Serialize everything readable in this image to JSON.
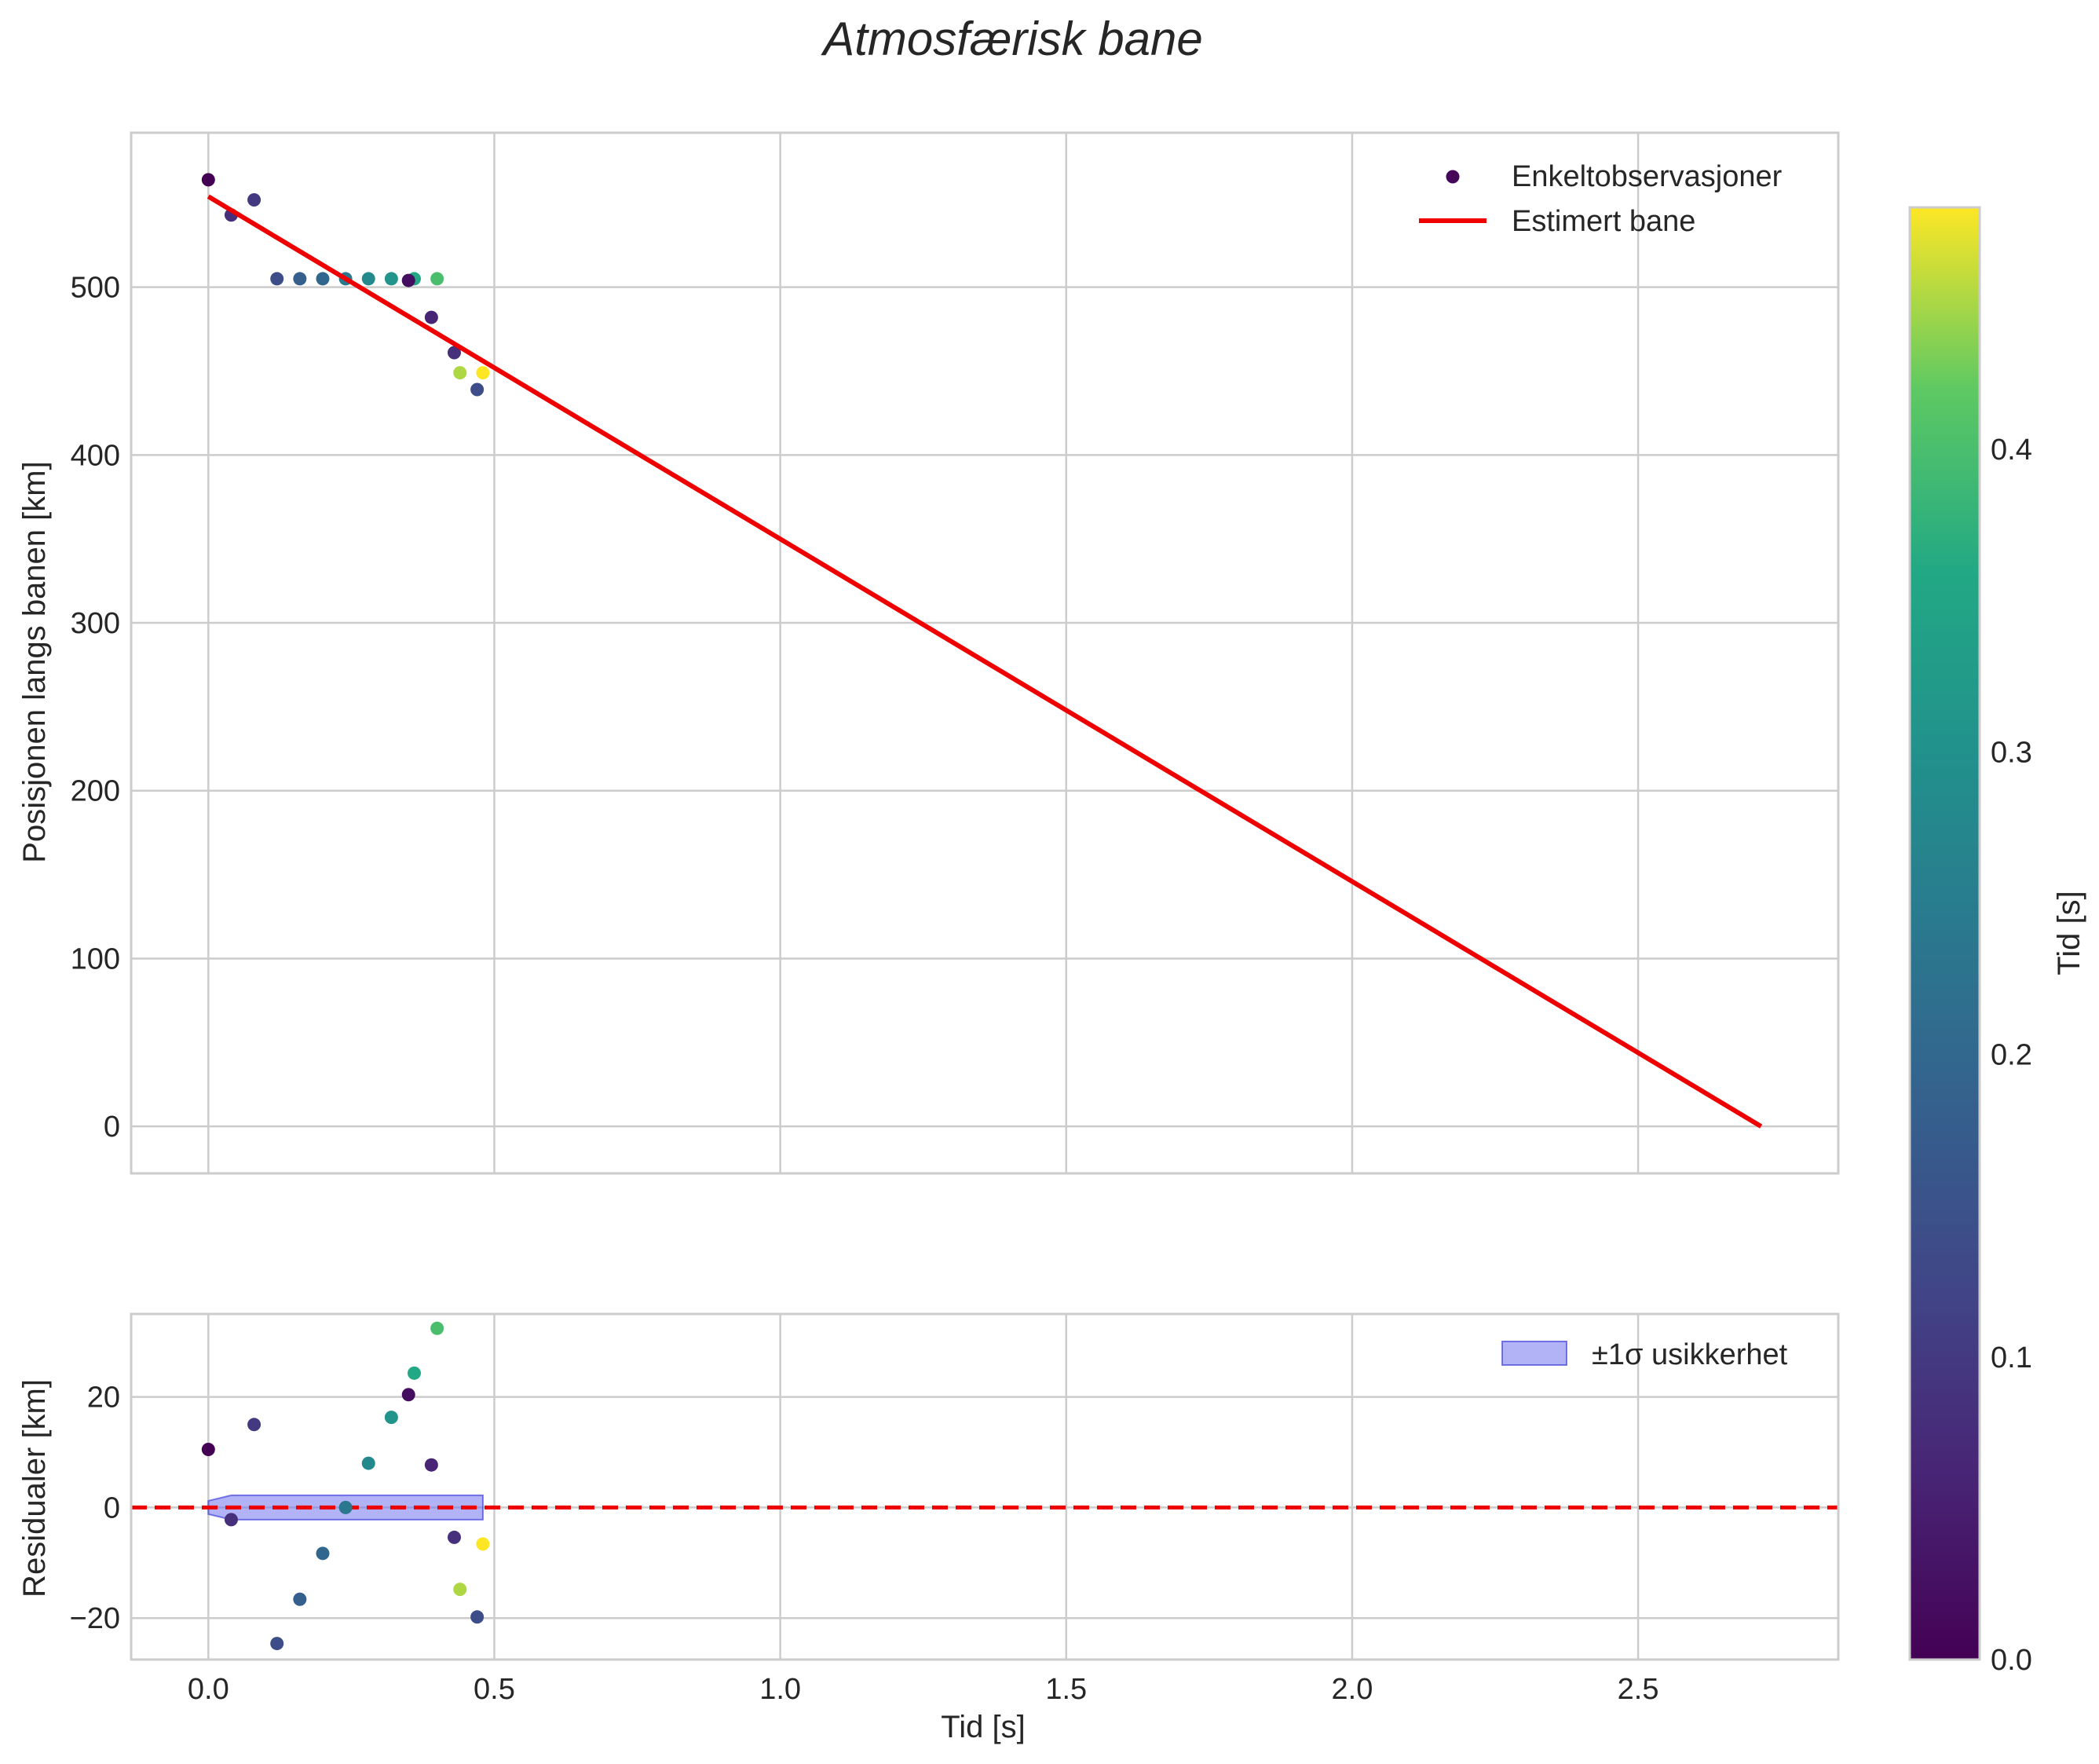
{
  "chart_data": {
    "title": "Atmosfærisk bane",
    "colormap": "viridis",
    "colorbar": {
      "label": "Tid [s]",
      "range": [
        0.0,
        0.48
      ],
      "ticks": [
        "0.0",
        "0.1",
        "0.2",
        "0.3",
        "0.4"
      ],
      "tick_values": [
        0.0,
        0.1,
        0.2,
        0.3,
        0.4
      ]
    },
    "panels": [
      {
        "id": "position",
        "type": "scatter+line",
        "ylabel": "Posisjonen langs banen [km]",
        "xlim": [
          -0.135,
          2.85
        ],
        "ylim": [
          -28,
          592
        ],
        "xticks": [
          0.0,
          0.5,
          1.0,
          1.5,
          2.0,
          2.5
        ],
        "yticks": [
          "0",
          "100",
          "200",
          "300",
          "400",
          "500"
        ],
        "ytick_values": [
          0,
          100,
          200,
          300,
          400,
          500
        ],
        "series": [
          {
            "name": "Enkeltobservasjoner",
            "kind": "scatter",
            "color_by": "time",
            "x": [
              0.0,
              0.04,
              0.08,
              0.12,
              0.16,
              0.2,
              0.24,
              0.28,
              0.32,
              0.36,
              0.4,
              0.35,
              0.39,
              0.43,
              0.44,
              0.48,
              0.47
            ],
            "y": [
              564,
              543,
              552,
              505,
              505,
              505,
              505,
              505,
              505,
              505,
              505,
              504,
              482,
              461,
              449,
              449,
              439
            ],
            "c": [
              0.0,
              0.08,
              0.1,
              0.14,
              0.18,
              0.2,
              0.24,
              0.28,
              0.31,
              0.36,
              0.4,
              0.02,
              0.06,
              0.08,
              0.45,
              0.48,
              0.14
            ]
          },
          {
            "name": "Estimert bane",
            "kind": "line",
            "color": "#ee0000",
            "x": [
              0.0,
              2.715
            ],
            "y": [
              554,
              0
            ]
          }
        ]
      },
      {
        "id": "residuals",
        "type": "scatter+band",
        "ylabel": "Residualer [km]",
        "xlabel": "Tid [s]",
        "xlim": [
          -0.135,
          2.85
        ],
        "ylim": [
          -27.5,
          35
        ],
        "xticks": [
          0.0,
          0.5,
          1.0,
          1.5,
          2.0,
          2.5
        ],
        "xtick_labels": [
          "0.0",
          "0.5",
          "1.0",
          "1.5",
          "2.0",
          "2.5"
        ],
        "yticks": [
          "−20",
          "0",
          "20"
        ],
        "ytick_values": [
          -20,
          0,
          20
        ],
        "zero_line_color": "#ee0000",
        "band": {
          "name": "±1σ usikkerhet",
          "color": "#6666ee",
          "x": [
            0.0,
            0.04,
            0.48
          ],
          "upper": [
            1.2,
            2.2,
            2.2
          ],
          "lower": [
            -1.2,
            -2.2,
            -2.2
          ]
        },
        "series": [
          {
            "name": "residuals",
            "kind": "scatter",
            "x": [
              0.0,
              0.04,
              0.08,
              0.12,
              0.16,
              0.2,
              0.24,
              0.28,
              0.32,
              0.36,
              0.4,
              0.35,
              0.39,
              0.43,
              0.44,
              0.48,
              0.47
            ],
            "y": [
              10.5,
              -2.2,
              15,
              -24.6,
              -16.6,
              -8.3,
              0,
              8,
              16.3,
              24.3,
              32.4,
              20.4,
              7.7,
              -5.4,
              -14.8,
              -6.6,
              -19.8
            ],
            "c": [
              0.0,
              0.08,
              0.1,
              0.14,
              0.18,
              0.2,
              0.24,
              0.28,
              0.31,
              0.36,
              0.4,
              0.02,
              0.06,
              0.08,
              0.45,
              0.48,
              0.14
            ]
          }
        ]
      }
    ]
  }
}
